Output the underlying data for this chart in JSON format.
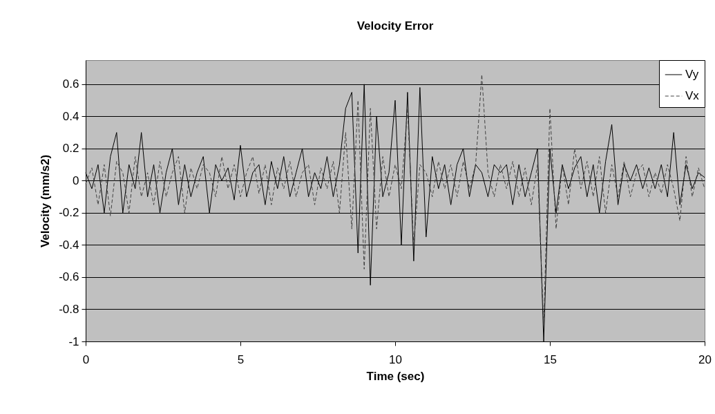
{
  "chart_data": {
    "type": "line",
    "title": "Velocity Error",
    "xlabel": "Time (sec)",
    "ylabel": "Velocity (mm/s2)",
    "x": [
      0,
      0.2,
      0.4,
      0.6,
      0.8,
      1,
      1.2,
      1.4,
      1.6,
      1.8,
      2,
      2.2,
      2.4,
      2.6,
      2.8,
      3,
      3.2,
      3.4,
      3.6,
      3.8,
      4,
      4.2,
      4.4,
      4.6,
      4.8,
      5,
      5.2,
      5.4,
      5.6,
      5.8,
      6,
      6.2,
      6.4,
      6.6,
      6.8,
      7,
      7.2,
      7.4,
      7.6,
      7.8,
      8,
      8.2,
      8.4,
      8.6,
      8.8,
      9,
      9.2,
      9.4,
      9.6,
      9.8,
      10,
      10.2,
      10.4,
      10.6,
      10.8,
      11,
      11.2,
      11.4,
      11.6,
      11.8,
      12,
      12.2,
      12.4,
      12.6,
      12.8,
      13,
      13.2,
      13.4,
      13.6,
      13.8,
      14,
      14.2,
      14.4,
      14.6,
      14.8,
      15,
      15.2,
      15.4,
      15.6,
      15.8,
      16,
      16.2,
      16.4,
      16.6,
      16.8,
      17,
      17.2,
      17.4,
      17.6,
      17.8,
      18,
      18.2,
      18.4,
      18.6,
      18.8,
      19,
      19.2,
      19.4,
      19.6,
      19.8,
      20
    ],
    "series": [
      {
        "name": "Vy",
        "color": "#000000",
        "line_style": "solid",
        "values": [
          0.05,
          -0.05,
          0.1,
          -0.2,
          0.15,
          0.3,
          -0.2,
          0.1,
          -0.05,
          0.3,
          -0.1,
          0.1,
          -0.2,
          0.05,
          0.2,
          -0.15,
          0.1,
          -0.1,
          0.05,
          0.15,
          -0.2,
          0.1,
          0,
          0.08,
          -0.12,
          0.22,
          -0.1,
          0.05,
          0.1,
          -0.15,
          0.12,
          -0.05,
          0.15,
          -0.1,
          0.05,
          0.2,
          -0.1,
          0.05,
          -0.05,
          0.15,
          -0.1,
          0.1,
          0.45,
          0.55,
          -0.45,
          0.6,
          -0.65,
          0.4,
          -0.1,
          0.05,
          0.5,
          -0.4,
          0.55,
          -0.5,
          0.58,
          -0.35,
          0.15,
          -0.05,
          0.1,
          -0.15,
          0.1,
          0.2,
          -0.1,
          0.1,
          0.05,
          -0.1,
          0.1,
          0.05,
          0.1,
          -0.15,
          0.1,
          -0.1,
          0.05,
          0.2,
          -1,
          0.2,
          -0.2,
          0.1,
          -0.05,
          0.08,
          0.15,
          -0.1,
          0.1,
          -0.2,
          0.12,
          0.35,
          -0.15,
          0.1,
          0,
          0.1,
          -0.05,
          0.08,
          -0.05,
          0.1,
          -0.1,
          0.3,
          -0.15,
          0.1,
          -0.05,
          0.05,
          0.02
        ]
      },
      {
        "name": "Vx",
        "color": "#404040",
        "line_style": "dashed",
        "values": [
          -0.02,
          0.08,
          -0.15,
          0.1,
          -0.22,
          0.12,
          0.05,
          -0.2,
          0.15,
          -0.1,
          0.05,
          -0.15,
          0.12,
          -0.1,
          0.05,
          0.15,
          -0.2,
          0.08,
          -0.05,
          0.1,
          0.05,
          -0.1,
          0.15,
          -0.05,
          0.1,
          -0.1,
          0.05,
          0.15,
          -0.08,
          0.1,
          -0.15,
          0.08,
          -0.05,
          0.12,
          -0.1,
          0.05,
          0.1,
          -0.15,
          0.08,
          -0.05,
          0.12,
          -0.2,
          0.3,
          -0.3,
          0.5,
          -0.55,
          0.45,
          -0.3,
          0.15,
          -0.1,
          0.1,
          -0.05,
          0.45,
          -0.4,
          0.1,
          0.05,
          -0.1,
          0.12,
          -0.05,
          0.1,
          -0.1,
          0.12,
          -0.05,
          0.1,
          0.66,
          0.05,
          -0.1,
          0.1,
          -0.05,
          0.12,
          -0.1,
          0.08,
          -0.15,
          0.1,
          -0.9,
          0.45,
          -0.3,
          0.1,
          -0.15,
          0.2,
          -0.05,
          0.12,
          -0.1,
          0.15,
          -0.2,
          0.1,
          -0.1,
          0.12,
          -0.1,
          0.05,
          0.1,
          -0.1,
          0.05,
          -0.08,
          0.1,
          -0.05,
          -0.25,
          0.15,
          -0.1,
          0.08,
          -0.05
        ]
      }
    ],
    "xlim": [
      0,
      20
    ],
    "xticks": [
      0,
      5,
      10,
      15,
      20
    ],
    "ylim": [
      -1,
      0.75
    ],
    "yticks": [
      -1,
      -0.8,
      -0.6,
      -0.4,
      -0.2,
      0,
      0.2,
      0.4,
      0.6
    ],
    "grid": "y",
    "legend": "top right",
    "marker": "none"
  }
}
